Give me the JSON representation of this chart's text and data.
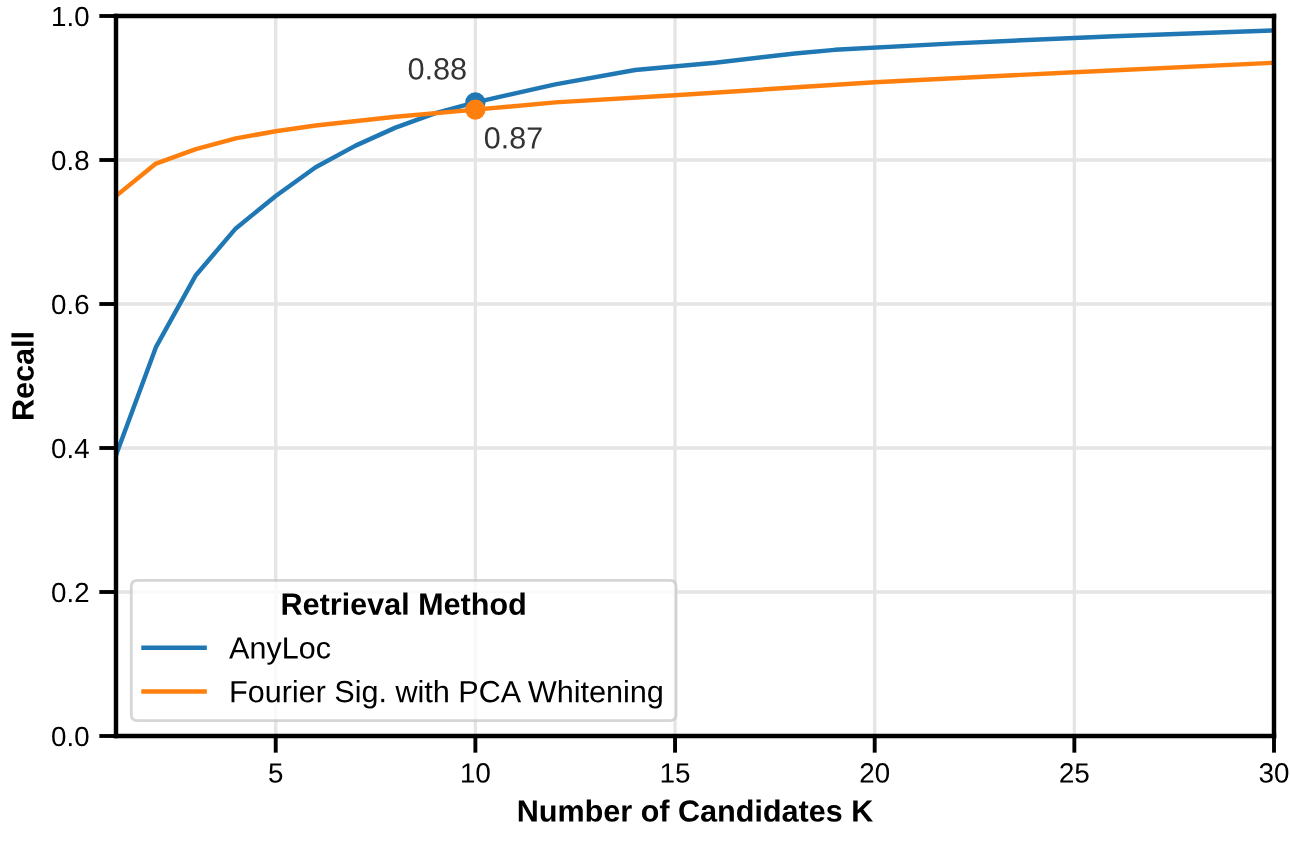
{
  "chart_data": {
    "type": "line",
    "xlabel": "Number of Candidates K",
    "ylabel": "Recall",
    "legend_title": "Retrieval Method",
    "xlim": [
      1,
      30
    ],
    "xticks": [
      5,
      10,
      15,
      20,
      25,
      30
    ],
    "ylim": [
      0,
      1.0
    ],
    "yticks": [
      {
        "value": 0,
        "label": "0.0"
      },
      0.2,
      0.4,
      0.6,
      0.8,
      {
        "value": 1,
        "label": "1.0"
      }
    ],
    "grid": true,
    "legend": "bottom left",
    "series": [
      {
        "name": "AnyLoc",
        "color": "#1f77b4",
        "x": [
          1,
          2,
          3,
          4,
          5,
          6,
          7,
          8,
          9,
          10,
          12,
          14,
          16,
          18,
          19,
          22,
          26,
          30
        ],
        "values": [
          0.39,
          0.54,
          0.64,
          0.705,
          0.75,
          0.79,
          0.82,
          0.845,
          0.865,
          0.88,
          0.905,
          0.925,
          0.935,
          0.948,
          0.953,
          0.962,
          0.972,
          0.98
        ]
      },
      {
        "name": "Fourier Sig. with PCA Whitening",
        "color": "#ff7f0e",
        "x": [
          1,
          2,
          3,
          4,
          5,
          6,
          8,
          10,
          12,
          15,
          20,
          25,
          30
        ],
        "values": [
          0.75,
          0.795,
          0.815,
          0.83,
          0.84,
          0.848,
          0.86,
          0.87,
          0.88,
          0.89,
          0.908,
          0.922,
          0.935
        ]
      },
      {
        "type": "scatter",
        "color": "#1f77b4",
        "x": [
          10
        ],
        "values": [
          0.88
        ],
        "value_labels": [
          "0.88"
        ]
      },
      {
        "type": "scatter",
        "color": "#ff7f0e",
        "x": [
          10
        ],
        "values": [
          0.87
        ],
        "value_labels": [
          "0.87"
        ]
      }
    ]
  }
}
